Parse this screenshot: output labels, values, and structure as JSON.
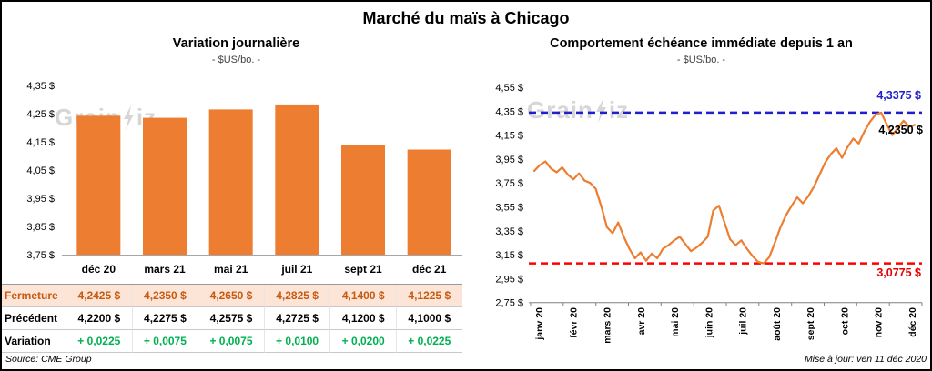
{
  "page": {
    "title": "Marché du maïs à Chicago"
  },
  "colors": {
    "accent_orange": "#ED7D31",
    "close_row_bg": "#FCE4D6",
    "close_row_text": "#C55A11",
    "variation_green": "#00B050",
    "resistance_blue": "#2020C8",
    "support_red": "#FF0000"
  },
  "watermark": {
    "part1": "Grain",
    "part2": "iz"
  },
  "left_chart": {
    "title": "Variation journalière",
    "subtitle": "- $US/bo. -",
    "source": "Source: CME Group"
  },
  "right_chart": {
    "title": "Comportement échéance immédiate depuis 1 an",
    "subtitle": "- $US/bo. -",
    "resistance_label": "4,3375 $",
    "current_label": "4,2350 $",
    "support_label": "3,0775 $",
    "updated": "Mise à jour: ven 11 déc 2020"
  },
  "table": {
    "rows": [
      {
        "label": "Fermeture",
        "style": "close",
        "values": [
          "4,2425 $",
          "4,2350 $",
          "4,2650 $",
          "4,2825 $",
          "4,1400 $",
          "4,1225 $"
        ]
      },
      {
        "label": "Précédent",
        "style": "previous",
        "values": [
          "4,2200 $",
          "4,2275 $",
          "4,2575 $",
          "4,2725 $",
          "4,1200 $",
          "4,1000 $"
        ]
      },
      {
        "label": "Variation",
        "style": "variation",
        "values": [
          "+ 0,0225",
          "+ 0,0075",
          "+ 0,0075",
          "+ 0,0100",
          "+ 0,0200",
          "+ 0,0225"
        ]
      }
    ]
  },
  "chart_data": [
    {
      "type": "bar",
      "title": "Variation journalière",
      "subtitle": "- $US/bo. -",
      "categories": [
        "déc 20",
        "mars 21",
        "mai 21",
        "juil 21",
        "sept 21",
        "déc 21"
      ],
      "values": [
        4.2425,
        4.235,
        4.265,
        4.2825,
        4.14,
        4.1225
      ],
      "y_ticks": [
        4.35,
        4.25,
        4.15,
        4.05,
        3.95,
        3.85,
        3.75
      ],
      "y_tick_labels": [
        "4,35 $",
        "4,25 $",
        "4,15 $",
        "4,05 $",
        "3,95 $",
        "3,85 $",
        "3,75 $"
      ],
      "ylim": [
        3.75,
        4.35
      ],
      "bar_color": "#ED7D31",
      "grid": false,
      "legend": false
    },
    {
      "type": "line",
      "title": "Comportement échéance immédiate depuis 1 an",
      "subtitle": "- $US/bo. -",
      "x_labels": [
        "janv 20",
        "févr 20",
        "mars 20",
        "avr 20",
        "mai 20",
        "juin 20",
        "juil 20",
        "août 20",
        "sept 20",
        "oct 20",
        "nov 20",
        "déc 20"
      ],
      "values": [
        3.85,
        3.9,
        3.93,
        3.87,
        3.84,
        3.88,
        3.82,
        3.78,
        3.83,
        3.77,
        3.75,
        3.7,
        3.55,
        3.38,
        3.33,
        3.42,
        3.3,
        3.2,
        3.12,
        3.17,
        3.1,
        3.16,
        3.12,
        3.2,
        3.23,
        3.27,
        3.3,
        3.24,
        3.18,
        3.21,
        3.25,
        3.3,
        3.52,
        3.56,
        3.42,
        3.28,
        3.23,
        3.27,
        3.2,
        3.14,
        3.09,
        3.0775,
        3.13,
        3.25,
        3.38,
        3.48,
        3.56,
        3.63,
        3.58,
        3.64,
        3.72,
        3.82,
        3.92,
        3.99,
        4.04,
        3.96,
        4.05,
        4.12,
        4.08,
        4.18,
        4.26,
        4.32,
        4.3375,
        4.24,
        4.15,
        4.21,
        4.27,
        4.22,
        4.235
      ],
      "y_ticks": [
        4.55,
        4.35,
        4.15,
        3.95,
        3.75,
        3.55,
        3.35,
        3.15,
        2.95,
        2.75
      ],
      "y_tick_labels": [
        "4,55 $",
        "4,35 $",
        "4,15 $",
        "3,95 $",
        "3,75 $",
        "3,55 $",
        "3,35 $",
        "3,15 $",
        "2,95 $",
        "2,75 $"
      ],
      "ylim": [
        2.75,
        4.55
      ],
      "line_color": "#ED7D31",
      "resistance": 4.3375,
      "resistance_color": "#2020C8",
      "support": 3.0775,
      "support_color": "#FF0000",
      "last_value": 4.235,
      "grid": false,
      "legend": false
    }
  ]
}
